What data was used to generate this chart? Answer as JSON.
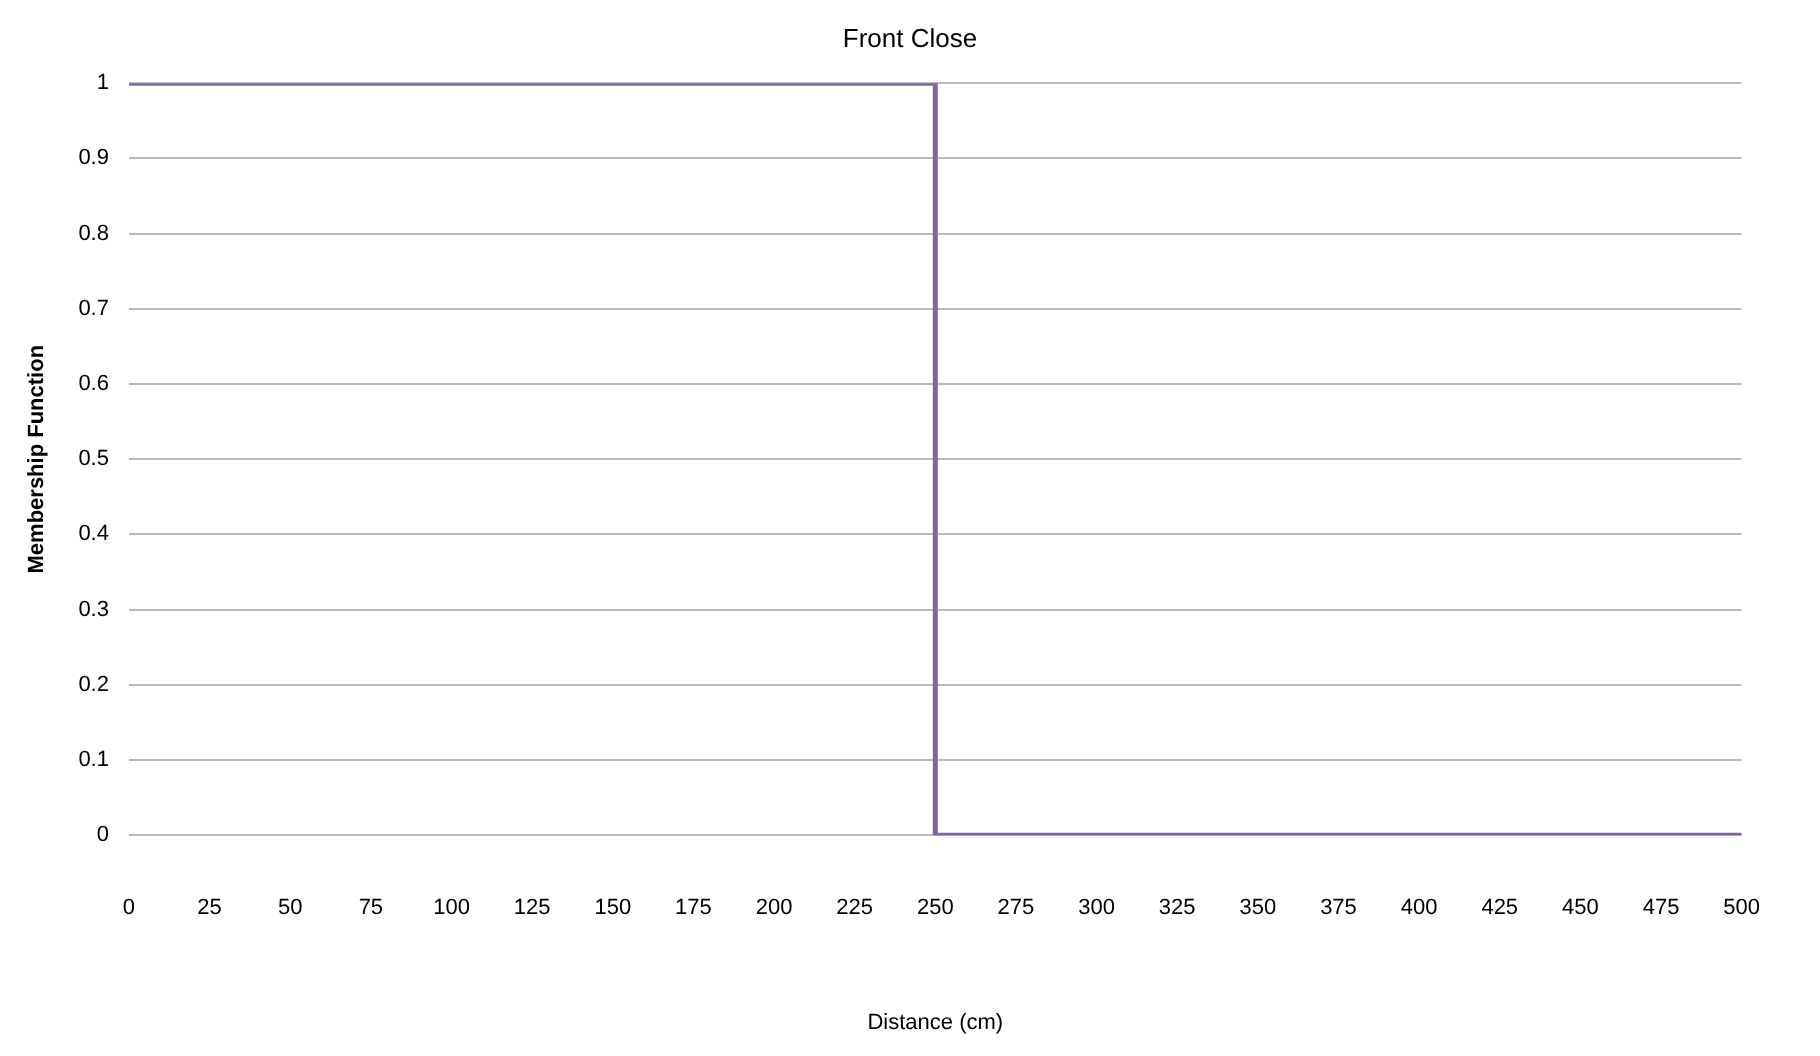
{
  "chart_data": {
    "type": "line",
    "title": "Front Close",
    "xlabel": "Distance (cm)",
    "ylabel": "Membership Function",
    "x": [
      0,
      250,
      250,
      500
    ],
    "series": [
      {
        "color": "#8064a2",
        "values": [
          1,
          1,
          0,
          0
        ]
      }
    ],
    "xlim": [
      0,
      500
    ],
    "xticks": [
      0,
      25,
      50,
      75,
      100,
      125,
      150,
      175,
      200,
      225,
      250,
      275,
      300,
      325,
      350,
      375,
      400,
      425,
      450,
      475,
      500
    ],
    "ylim": [
      0,
      1
    ],
    "yticks": [
      0,
      0.1,
      0.2,
      0.3,
      0.4,
      0.5,
      0.6,
      0.7,
      0.8,
      0.9,
      1
    ],
    "grid": "y",
    "legend": false,
    "marker": "none",
    "line_style": "solid"
  }
}
